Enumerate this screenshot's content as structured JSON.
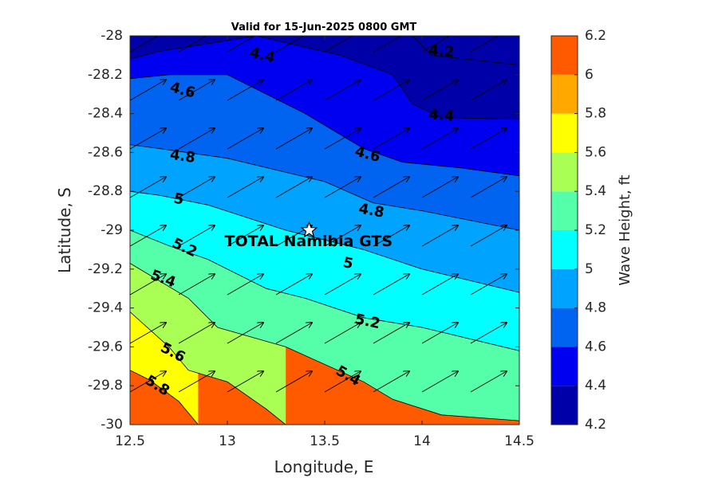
{
  "chart_data": {
    "type": "contour",
    "title": "Valid for 15-Jun-2025 0800 GMT",
    "xlabel": "Longitude, E",
    "ylabel": "Latitude, S",
    "xlim": [
      12.5,
      14.5
    ],
    "ylim": [
      -30,
      -28
    ],
    "xticks": [
      12.5,
      13,
      13.5,
      14,
      14.5
    ],
    "yticks": [
      -28,
      -28.2,
      -28.4,
      -28.6,
      -28.8,
      -29,
      -29.2,
      -29.4,
      -29.6,
      -29.8,
      -30
    ],
    "xtick_labels": [
      "12.5",
      "13",
      "13.5",
      "14",
      "14.5"
    ],
    "ytick_labels": [
      "-28",
      "-28.2",
      "-28.4",
      "-28.6",
      "-28.8",
      "-29",
      "-29.2",
      "-29.4",
      "-29.6",
      "-29.8",
      "-30"
    ],
    "colorbar": {
      "label": "Wave Height, ft",
      "levels": [
        4.2,
        4.4,
        4.6,
        4.8,
        5.0,
        5.2,
        5.4,
        5.6,
        5.8,
        6.0,
        6.2
      ],
      "tick_labels": [
        "4.2",
        "4.4",
        "4.6",
        "4.8",
        "5",
        "5.2",
        "5.4",
        "5.6",
        "5.8",
        "6",
        "6.2"
      ],
      "colors": [
        "#0000a8",
        "#0000f0",
        "#0064f0",
        "#00a4ff",
        "#00ffff",
        "#55ffaa",
        "#aaff55",
        "#ffff00",
        "#ffa800",
        "#ff5a00"
      ]
    },
    "contours": [
      {
        "level": 4.2,
        "points": [
          [
            13.95,
            -28
          ],
          [
            14.05,
            -28.1
          ],
          [
            14.5,
            -28.15
          ]
        ]
      },
      {
        "level": 4.4,
        "points": [
          [
            12.5,
            -28.12
          ],
          [
            12.65,
            -28.08
          ],
          [
            12.9,
            -28.04
          ],
          [
            13.15,
            -28
          ],
          [
            13.58,
            -28.1
          ],
          [
            13.85,
            -28.2
          ],
          [
            13.95,
            -28.35
          ],
          [
            14.1,
            -28.42
          ],
          [
            14.5,
            -28.43
          ]
        ]
      },
      {
        "level": 4.6,
        "points": [
          [
            12.5,
            -28.22
          ],
          [
            12.7,
            -28.2
          ],
          [
            13.0,
            -28.2
          ],
          [
            13.4,
            -28.4
          ],
          [
            13.7,
            -28.58
          ],
          [
            13.9,
            -28.65
          ],
          [
            14.2,
            -28.68
          ],
          [
            14.5,
            -28.72
          ]
        ]
      },
      {
        "level": 4.8,
        "points": [
          [
            12.5,
            -28.56
          ],
          [
            12.65,
            -28.58
          ],
          [
            13.0,
            -28.63
          ],
          [
            13.5,
            -28.75
          ],
          [
            13.75,
            -28.86
          ],
          [
            14.0,
            -28.9
          ],
          [
            14.5,
            -29.0
          ]
        ]
      },
      {
        "level": 5.0,
        "points": [
          [
            12.5,
            -28.8
          ],
          [
            12.65,
            -28.82
          ],
          [
            12.9,
            -28.87
          ],
          [
            13.3,
            -29.0
          ],
          [
            13.7,
            -29.1
          ],
          [
            14.0,
            -29.2
          ],
          [
            14.5,
            -29.32
          ]
        ]
      },
      {
        "level": 5.2,
        "points": [
          [
            12.5,
            -29.0
          ],
          [
            12.7,
            -29.08
          ],
          [
            12.9,
            -29.15
          ],
          [
            13.2,
            -29.3
          ],
          [
            13.4,
            -29.35
          ],
          [
            13.7,
            -29.45
          ],
          [
            14.0,
            -29.5
          ],
          [
            14.5,
            -29.62
          ]
        ]
      },
      {
        "level": 5.4,
        "points": [
          [
            12.5,
            -29.17
          ],
          [
            12.8,
            -29.35
          ],
          [
            12.95,
            -29.5
          ],
          [
            13.3,
            -29.6
          ],
          [
            13.7,
            -29.78
          ],
          [
            13.85,
            -29.87
          ],
          [
            14.1,
            -29.95
          ],
          [
            14.5,
            -29.98
          ]
        ]
      },
      {
        "level": 5.6,
        "points": [
          [
            12.5,
            -29.42
          ],
          [
            12.7,
            -29.6
          ],
          [
            12.8,
            -29.72
          ],
          [
            13.0,
            -29.78
          ],
          [
            13.2,
            -29.92
          ],
          [
            13.3,
            -30
          ]
        ]
      },
      {
        "level": 5.8,
        "points": [
          [
            12.5,
            -29.72
          ],
          [
            12.6,
            -29.77
          ],
          [
            12.75,
            -29.88
          ],
          [
            12.85,
            -30
          ]
        ]
      }
    ],
    "contour_labels": [
      {
        "text": "4.4",
        "lon": 13.18,
        "lat": -28.1,
        "angle": 14
      },
      {
        "text": "4.2",
        "lon": 14.1,
        "lat": -28.08,
        "angle": 5
      },
      {
        "text": "4.6",
        "lon": 12.77,
        "lat": -28.28,
        "angle": 15
      },
      {
        "text": "4.4",
        "lon": 14.1,
        "lat": -28.41,
        "angle": 5
      },
      {
        "text": "4.8",
        "lon": 12.77,
        "lat": -28.62,
        "angle": 8
      },
      {
        "text": "4.6",
        "lon": 13.72,
        "lat": -28.61,
        "angle": 15
      },
      {
        "text": "5",
        "lon": 12.75,
        "lat": -28.84,
        "angle": 10
      },
      {
        "text": "4.8",
        "lon": 13.74,
        "lat": -28.9,
        "angle": 10
      },
      {
        "text": "5.2",
        "lon": 12.78,
        "lat": -29.09,
        "angle": 25
      },
      {
        "text": "5",
        "lon": 13.62,
        "lat": -29.17,
        "angle": 12
      },
      {
        "text": "5.4",
        "lon": 12.67,
        "lat": -29.25,
        "angle": 20
      },
      {
        "text": "5.2",
        "lon": 13.72,
        "lat": -29.47,
        "angle": 12
      },
      {
        "text": "5.6",
        "lon": 12.72,
        "lat": -29.63,
        "angle": 28
      },
      {
        "text": "5.4",
        "lon": 13.62,
        "lat": -29.75,
        "angle": 30
      },
      {
        "text": "5.8",
        "lon": 12.64,
        "lat": -29.8,
        "angle": 32
      }
    ],
    "vector_field": {
      "direction_deg_from_east": 30,
      "lon_positions": [
        12.5,
        12.75,
        13.0,
        13.25,
        13.5,
        13.75,
        14.0,
        14.25
      ],
      "lat_positions": [
        -28.0,
        -28.25,
        -28.5,
        -28.75,
        -29.0,
        -29.25,
        -29.5,
        -29.75
      ]
    },
    "station": {
      "name": "TOTAL Namibia GTS",
      "lon": 13.42,
      "lat": -29.0
    }
  }
}
